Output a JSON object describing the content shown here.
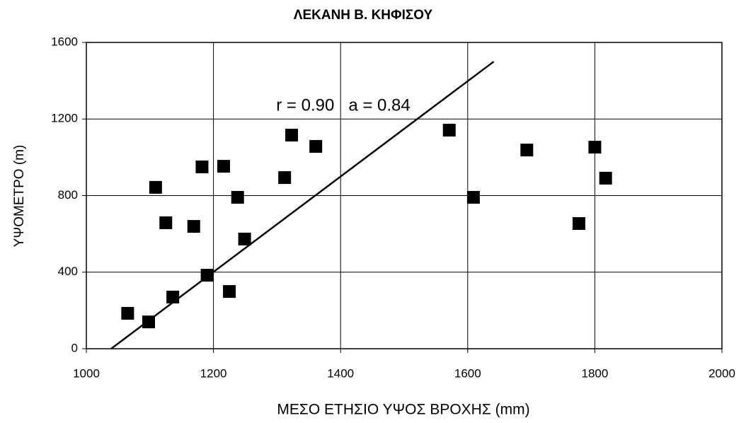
{
  "chart_data": {
    "type": "scatter",
    "title": "ΛΕΚΑΝΗ Β. ΚΗΦΙΣΟΥ",
    "x_label": "ΜΕΣΟ ΕΤΗΣΙΟ ΥΨΟΣ ΒΡΟΧΗΣ (mm)",
    "y_label": "ΥΨΟΜΕΤΡΟ (m)",
    "annotation": "r = 0.90   a = 0.84",
    "x": [
      1065,
      1098,
      1136,
      1109,
      1125,
      1169,
      1182,
      1190,
      1216,
      1225,
      1238,
      1249,
      1312,
      1323,
      1361,
      1571,
      1609,
      1693,
      1775,
      1800,
      1817
    ],
    "values": [
      185,
      140,
      270,
      843,
      658,
      639,
      950,
      384,
      953,
      299,
      791,
      573,
      894,
      1116,
      1057,
      1142,
      791,
      1038,
      654,
      1053,
      891
    ],
    "color": "#000000",
    "trendline": {
      "x": [
        1039,
        1641
      ],
      "y": [
        0,
        1500
      ]
    },
    "xlim": [
      1000,
      2000
    ],
    "xticks": [
      1000,
      1200,
      1400,
      1600,
      1800,
      2000
    ],
    "ylim": [
      0,
      1600
    ],
    "yticks": [
      0,
      400,
      800,
      1200,
      1600
    ],
    "grid": true
  }
}
